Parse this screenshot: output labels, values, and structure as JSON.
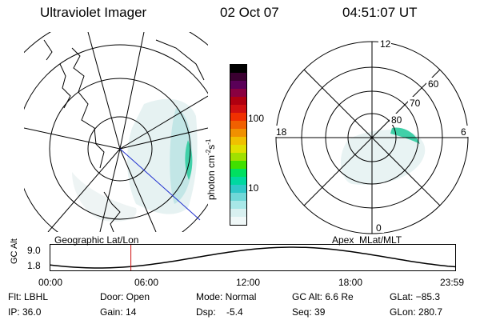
{
  "header": {
    "title": "Ultraviolet Imager",
    "date": "02 Oct 07",
    "time": "04:51:07 UT"
  },
  "colorbar": {
    "label": "photon cm",
    "label_exp1": "-2",
    "label_mid": "s",
    "label_exp2": "-1",
    "ticks": [
      "100",
      "10"
    ],
    "colors": [
      "#000000",
      "#3a0030",
      "#5a0058",
      "#8a0040",
      "#b00010",
      "#d01010",
      "#f03000",
      "#f06000",
      "#f09000",
      "#f0c000",
      "#e0e000",
      "#a0e000",
      "#40e000",
      "#00e060",
      "#00d8a0",
      "#30c8c8",
      "#70d8d8",
      "#a8e8e8",
      "#d8f0f0",
      "#f0f8f8"
    ]
  },
  "polar_plot": {
    "labels": [
      "12",
      "60",
      "70",
      "80",
      "18",
      "6",
      "0"
    ]
  },
  "footer_labels": {
    "left": "Geographic Lat/Lon",
    "right": "Apex  MLat/MLT"
  },
  "altitude_strip": {
    "axis_title": "GC Alt",
    "y_ticks": [
      "9.0",
      "1.8"
    ],
    "x_ticks": [
      "00:00",
      "06:00",
      "12:00",
      "18:00",
      "23:59"
    ],
    "current_time_marker_fraction": 0.2
  },
  "info_rows": [
    [
      "Flt: LBHL",
      "Door: Open",
      "Mode: Normal",
      "GC Alt: 6.6 Re",
      "GLat: −85.3"
    ],
    [
      "IP: 36.0",
      "Gain: 14",
      "Dsp:    -5.4",
      "Seq: 39",
      "GLon: 280.7"
    ]
  ]
}
